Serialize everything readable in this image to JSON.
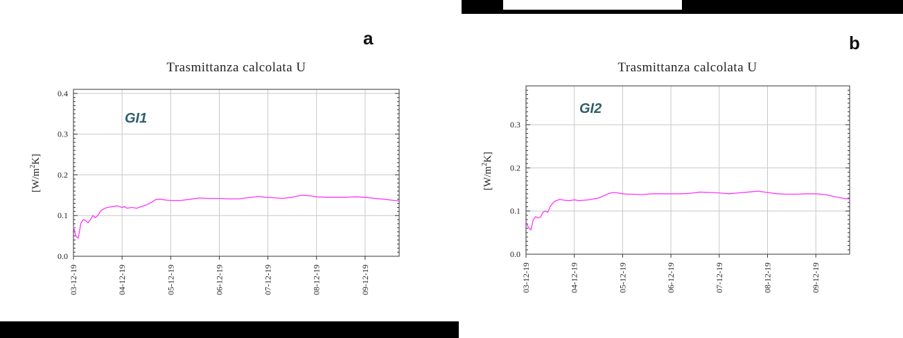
{
  "panels": [
    {
      "letter": "a",
      "annotation": "GI1"
    },
    {
      "letter": "b",
      "annotation": "GI2"
    }
  ],
  "colors": {
    "line": "#ff33ff",
    "grid": "#c8c8c8",
    "axis": "#333333",
    "annotation": "#2f5f6a"
  },
  "chart_data": [
    {
      "type": "line",
      "title": "Trasmittanza calcolata U",
      "xlabel": "",
      "ylabel_main": "[W/m",
      "ylabel_sup": "2",
      "ylabel_tail": "K]",
      "x_ticks": [
        "03-12-19",
        "04-12-19",
        "05-12-19",
        "06-12-19",
        "07-12-19",
        "08-12-19",
        "09-12-19"
      ],
      "xlim": [
        0,
        6.7
      ],
      "ylim": [
        0,
        0.41
      ],
      "y_ticks": [
        0.0,
        0.1,
        0.2,
        0.3,
        0.4
      ],
      "y_tick_labels": [
        "0.0",
        "0.1",
        "0.2",
        "0.3",
        "0.4"
      ],
      "grid": true,
      "series": [
        {
          "x": [
            0,
            0.05,
            0.1,
            0.15,
            0.2,
            0.25,
            0.3,
            0.35,
            0.4,
            0.45,
            0.5,
            0.55,
            0.6,
            0.65,
            0.7,
            0.8,
            0.9,
            1.0,
            1.05,
            1.1,
            1.2,
            1.3,
            1.4,
            1.5,
            1.6,
            1.7,
            1.8,
            1.9,
            2.0,
            2.1,
            2.2,
            2.4,
            2.6,
            2.8,
            3.0,
            3.2,
            3.4,
            3.6,
            3.8,
            3.95,
            4.1,
            4.3,
            4.5,
            4.7,
            4.9,
            5.0,
            5.2,
            5.4,
            5.6,
            5.8,
            6.0,
            6.2,
            6.4,
            6.6,
            6.7
          ],
          "y": [
            0.072,
            0.05,
            0.044,
            0.08,
            0.09,
            0.088,
            0.082,
            0.09,
            0.1,
            0.095,
            0.1,
            0.11,
            0.115,
            0.118,
            0.12,
            0.122,
            0.124,
            0.12,
            0.122,
            0.118,
            0.12,
            0.118,
            0.122,
            0.126,
            0.132,
            0.14,
            0.14,
            0.138,
            0.137,
            0.137,
            0.137,
            0.14,
            0.143,
            0.142,
            0.142,
            0.141,
            0.141,
            0.144,
            0.147,
            0.145,
            0.144,
            0.142,
            0.145,
            0.15,
            0.148,
            0.146,
            0.145,
            0.145,
            0.145,
            0.146,
            0.145,
            0.142,
            0.14,
            0.137,
            0.136
          ]
        }
      ]
    },
    {
      "type": "line",
      "title": "Trasmittanza calcolata U",
      "xlabel": "",
      "ylabel_main": "[W/m",
      "ylabel_sup": "2",
      "ylabel_tail": "K]",
      "x_ticks": [
        "03-12-19",
        "04-12-19",
        "05-12-19",
        "06-12-19",
        "07-12-19",
        "08-12-19",
        "09-12-19"
      ],
      "xlim": [
        0,
        6.7
      ],
      "ylim": [
        0,
        0.39
      ],
      "y_ticks": [
        0.0,
        0.1,
        0.2,
        0.3
      ],
      "y_tick_labels": [
        "0.0",
        "0.1",
        "0.2",
        "0.3"
      ],
      "grid": true,
      "series": [
        {
          "x": [
            0,
            0.05,
            0.1,
            0.15,
            0.2,
            0.25,
            0.3,
            0.35,
            0.4,
            0.45,
            0.5,
            0.55,
            0.6,
            0.7,
            0.8,
            0.9,
            1.0,
            1.1,
            1.2,
            1.3,
            1.4,
            1.5,
            1.6,
            1.7,
            1.8,
            1.9,
            2.0,
            2.1,
            2.2,
            2.4,
            2.6,
            2.8,
            3.0,
            3.2,
            3.4,
            3.6,
            3.8,
            4.0,
            4.2,
            4.4,
            4.6,
            4.8,
            5.0,
            5.2,
            5.4,
            5.6,
            5.8,
            6.0,
            6.2,
            6.4,
            6.6,
            6.7
          ],
          "y": [
            0.075,
            0.062,
            0.056,
            0.08,
            0.087,
            0.084,
            0.086,
            0.097,
            0.1,
            0.097,
            0.11,
            0.118,
            0.123,
            0.127,
            0.125,
            0.124,
            0.126,
            0.124,
            0.125,
            0.126,
            0.128,
            0.13,
            0.135,
            0.14,
            0.143,
            0.142,
            0.14,
            0.139,
            0.139,
            0.138,
            0.14,
            0.14,
            0.14,
            0.14,
            0.141,
            0.144,
            0.143,
            0.142,
            0.14,
            0.142,
            0.144,
            0.146,
            0.143,
            0.14,
            0.139,
            0.139,
            0.14,
            0.14,
            0.138,
            0.133,
            0.129,
            0.128
          ]
        }
      ]
    }
  ]
}
